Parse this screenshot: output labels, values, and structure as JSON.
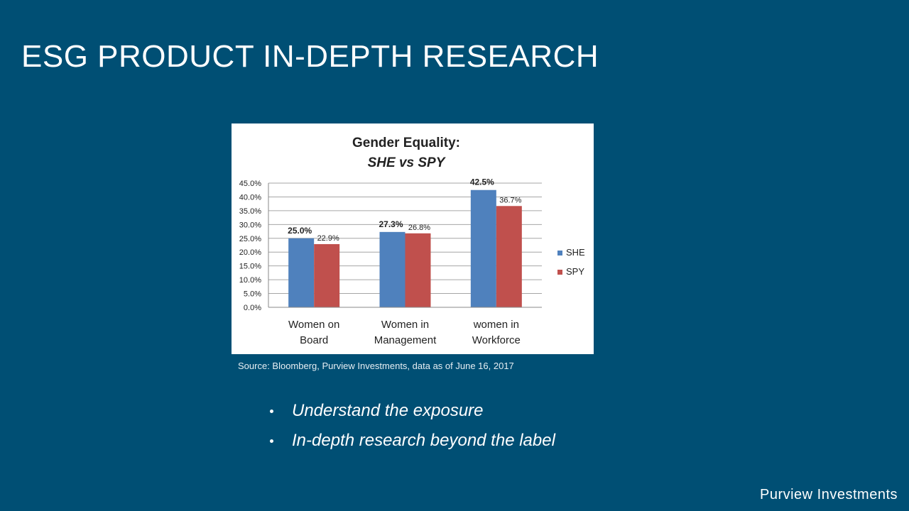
{
  "slide": {
    "title": "ESG PRODUCT IN-DEPTH RESEARCH",
    "source": "Source: Bloomberg, Purview Investments, data as of June 16, 2017",
    "bullets": [
      "Understand the exposure",
      "In-depth research beyond the label"
    ],
    "footer": "Purview Investments"
  },
  "chart_data": {
    "type": "bar",
    "title": "Gender Equality:",
    "subtitle": "SHE vs SPY",
    "categories": [
      [
        "Women on",
        "Board"
      ],
      [
        "Women in",
        "Management"
      ],
      [
        "women in",
        "Workforce"
      ]
    ],
    "series": [
      {
        "name": "SHE",
        "values": [
          25.0,
          27.3,
          42.5
        ],
        "labels": [
          "25.0%",
          "27.3%",
          "42.5%"
        ],
        "color": "#4f81bd"
      },
      {
        "name": "SPY",
        "values": [
          22.9,
          26.8,
          36.7
        ],
        "labels": [
          "22.9%",
          "26.8%",
          "36.7%"
        ],
        "color": "#c0504d"
      }
    ],
    "yticks": [
      "0.0%",
      "5.0%",
      "10.0%",
      "15.0%",
      "20.0%",
      "25.0%",
      "30.0%",
      "35.0%",
      "40.0%",
      "45.0%"
    ],
    "ylim": [
      0,
      45
    ],
    "grid": true,
    "legend": "right"
  }
}
